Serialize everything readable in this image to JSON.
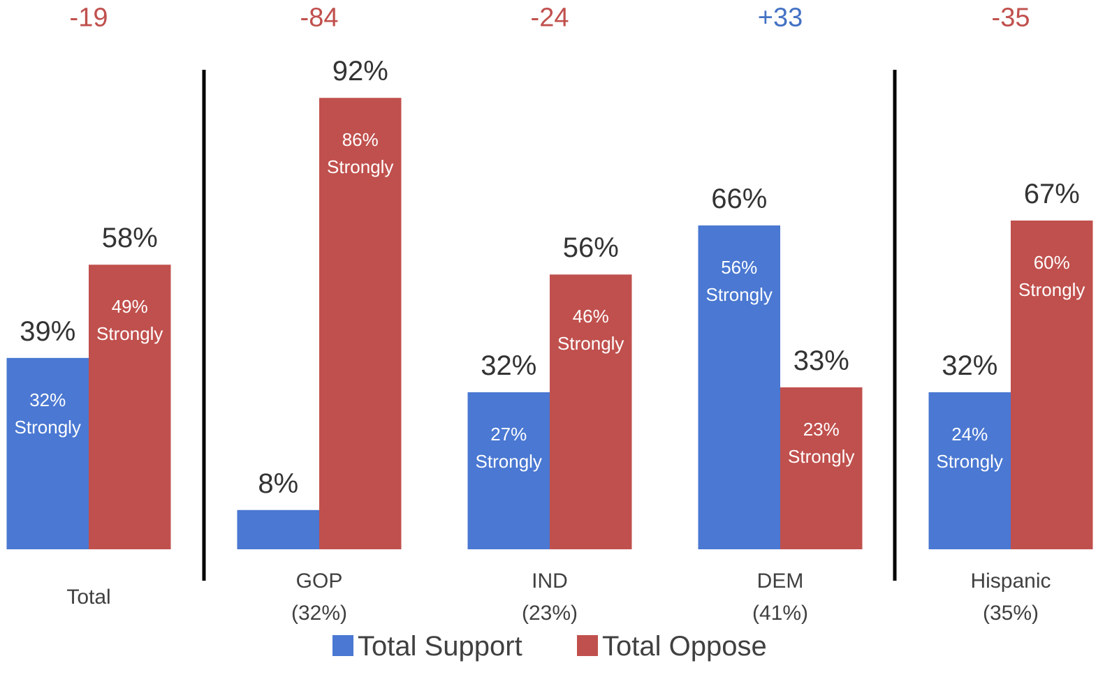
{
  "chart_data": {
    "type": "bar",
    "categories": [
      "Total",
      "GOP\n(32%)",
      "IND\n(23%)",
      "DEM\n(41%)",
      "Hispanic\n(35%)"
    ],
    "series": [
      {
        "name": "Total Support",
        "color": "#4a78d2",
        "values": [
          39,
          8,
          32,
          66,
          32
        ],
        "value_labels": [
          "39%",
          "8%",
          "32%",
          "66%",
          "32%"
        ],
        "strongly_labels": [
          "32%\nStrongly",
          null,
          "27%\nStrongly",
          "56%\nStrongly",
          "24%\nStrongly"
        ]
      },
      {
        "name": "Total Oppose",
        "color": "#c0504d",
        "values": [
          58,
          92,
          56,
          33,
          67
        ],
        "value_labels": [
          "58%",
          "92%",
          "56%",
          "33%",
          "67%"
        ],
        "strongly_labels": [
          "49%\nStrongly",
          "86%\nStrongly",
          "46%\nStrongly",
          "23%\nStrongly",
          "60%\nStrongly"
        ]
      }
    ],
    "net_labels": [
      "-19",
      "-84",
      "-24",
      "+33",
      "-35"
    ],
    "net_colors": [
      "#c0504d",
      "#c0504d",
      "#c0504d",
      "#4472c4",
      "#c0504d"
    ],
    "ylim": [
      0,
      100
    ],
    "legend": "bottom"
  }
}
